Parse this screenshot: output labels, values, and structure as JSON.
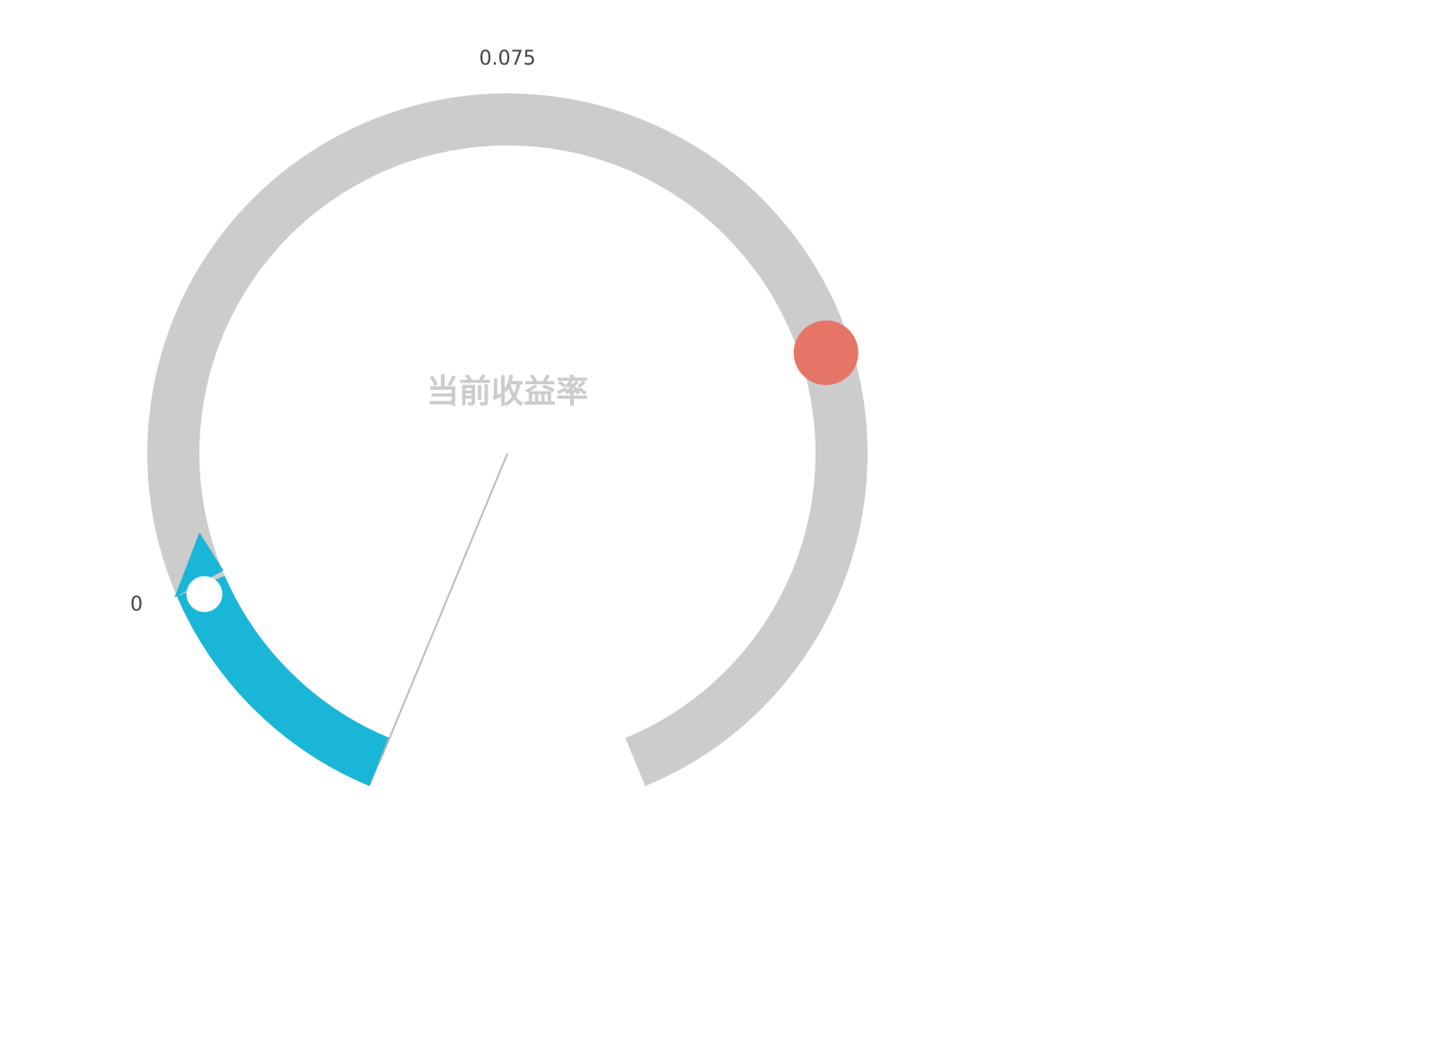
{
  "chart_data": {
    "type": "gauge",
    "title": "当前收益率",
    "min": 0,
    "max": 0.15,
    "value": 0.0,
    "tick_labels": {
      "min": "0",
      "mid": "0.075"
    },
    "arc_range_degrees": [
      -157.5,
      157.5
    ],
    "progress_fraction": 0.14,
    "target_fraction": 0.73,
    "needle_fraction": 0.0,
    "colors": {
      "track": "#cccccc",
      "progress": "#1ab6d7",
      "target_marker": "#e57566",
      "progress_knob": "#ffffff",
      "needle": "#bbbbbb",
      "title": "#cccccc",
      "tick_label": "#444444"
    }
  }
}
